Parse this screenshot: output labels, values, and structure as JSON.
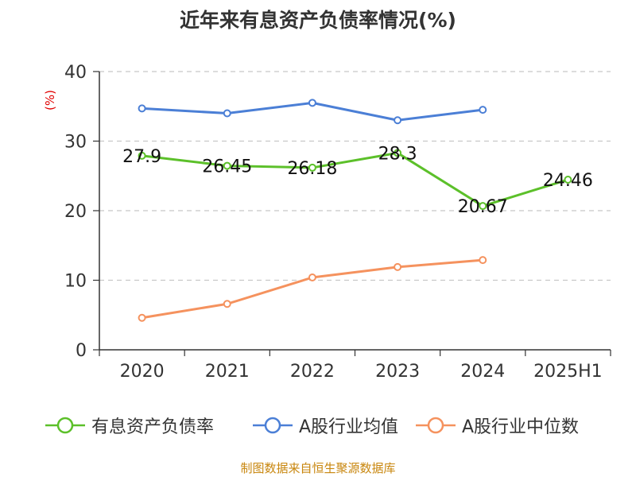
{
  "title": "近年来有息资产负债率情况(%)",
  "source": "制图数据来自恒生聚源数据库",
  "chart_data": {
    "type": "line",
    "categories": [
      "2020",
      "2021",
      "2022",
      "2023",
      "2024",
      "2025H1"
    ],
    "ylim": [
      0,
      40
    ],
    "yticks": [
      0,
      10,
      20,
      30,
      40
    ],
    "ylabel": "(%)",
    "ylabel_color": "#e00000",
    "grid": true,
    "series": [
      {
        "name": "有息资产负债率",
        "color": "#5cc02a",
        "values": [
          27.9,
          26.45,
          26.18,
          28.3,
          20.67,
          24.46
        ],
        "labels": [
          "27.9",
          "26.45",
          "26.18",
          "28.3",
          "20.67",
          "24.46"
        ],
        "show_labels": true
      },
      {
        "name": "A股行业均值",
        "color": "#4b7fd6",
        "values": [
          34.7,
          34.0,
          35.5,
          33.0,
          34.5,
          null
        ],
        "show_labels": false
      },
      {
        "name": "A股行业中位数",
        "color": "#f5925e",
        "values": [
          4.6,
          6.6,
          10.4,
          11.9,
          12.9,
          null
        ],
        "show_labels": false
      }
    ],
    "legend_position": "bottom"
  }
}
